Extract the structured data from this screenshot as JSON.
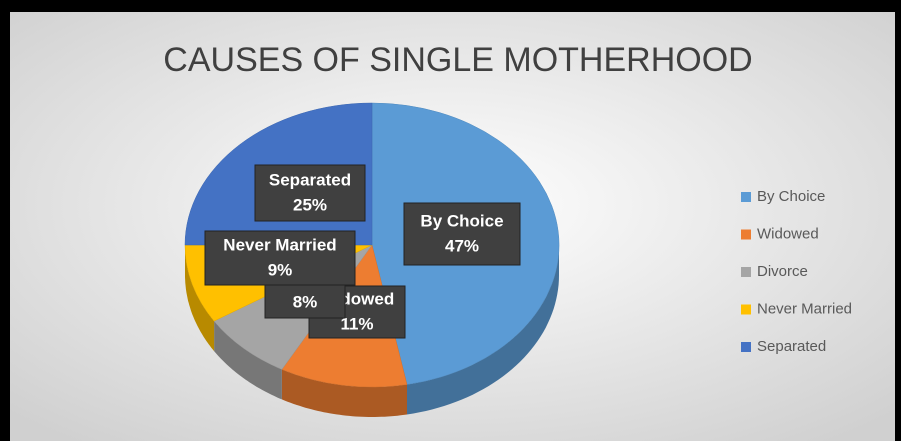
{
  "chart_data": {
    "type": "pie",
    "title": "CAUSES OF SINGLE MOTHERHOOD",
    "categories": [
      "By Choice",
      "Widowed",
      "Divorce",
      "Never Married",
      "Separated"
    ],
    "values": [
      47,
      11,
      8,
      9,
      25
    ],
    "value_labels": [
      "47%",
      "11%",
      "8%",
      "9%",
      "25%"
    ],
    "colors": [
      "#5b9bd5",
      "#ed7d31",
      "#a5a5a5",
      "#ffc000",
      "#4472c4"
    ],
    "legend": "right"
  }
}
